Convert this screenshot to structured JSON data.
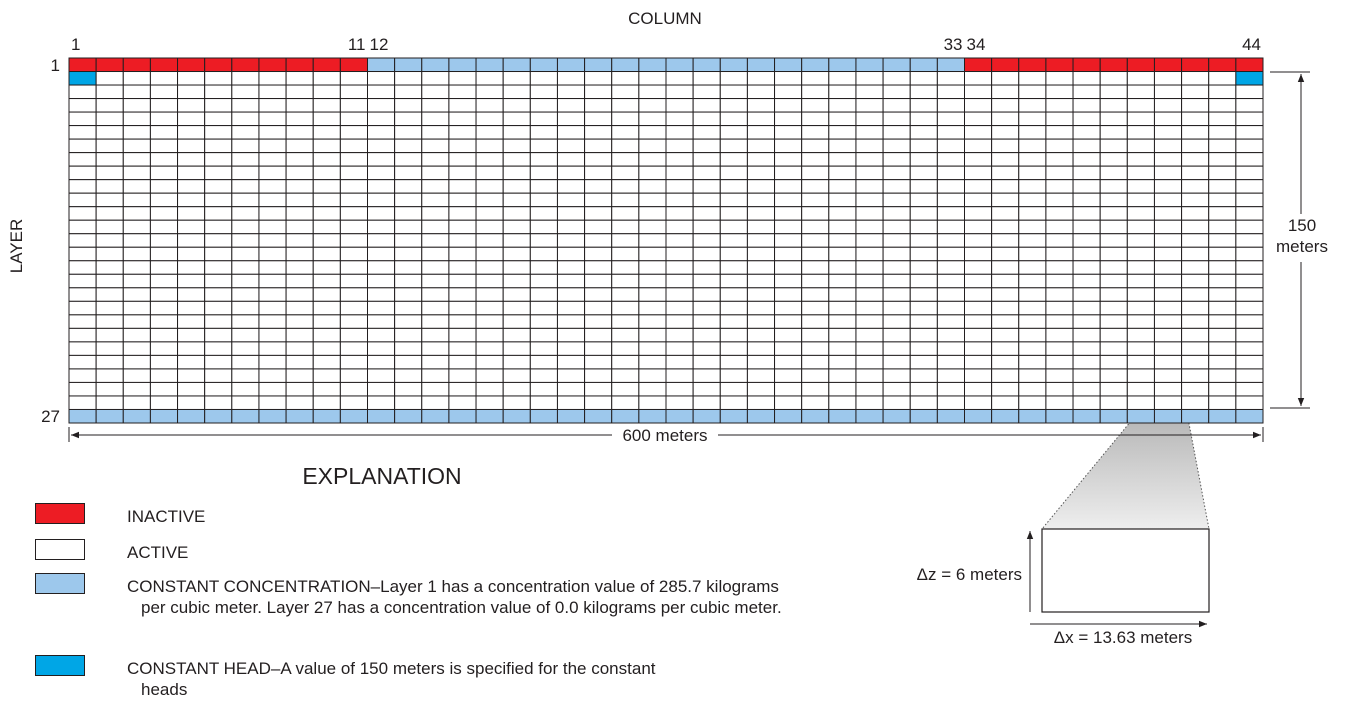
{
  "diagram": {
    "column_heading": "COLUMN",
    "layer_heading": "LAYER",
    "column_labels": [
      "1",
      "11",
      "12",
      "33",
      "34",
      "44"
    ],
    "layer_labels": [
      "1",
      "27"
    ],
    "height_label": "150 meters",
    "width_label": "600 meters",
    "cell_dz": "Δz = 6 meters",
    "cell_dx": "Δx = 13.63 meters"
  },
  "explanation": {
    "title": "EXPLANATION",
    "items": [
      {
        "key": "inactive",
        "color": "#ed1c24",
        "text": "INACTIVE"
      },
      {
        "key": "active",
        "color": "#ffffff",
        "text": "ACTIVE"
      },
      {
        "key": "concentration",
        "color": "#9dc8ec",
        "text": "CONSTANT CONCENTRATION–Layer 1 has a concentration value of 285.7 kilograms per cubic meter. Layer 27 has a concentration value of 0.0 kilograms per cubic meter."
      },
      {
        "key": "head",
        "color": "#00a6e6",
        "text": "CONSTANT HEAD–A value of 150 meters is specified for the constant heads"
      }
    ]
  }
}
